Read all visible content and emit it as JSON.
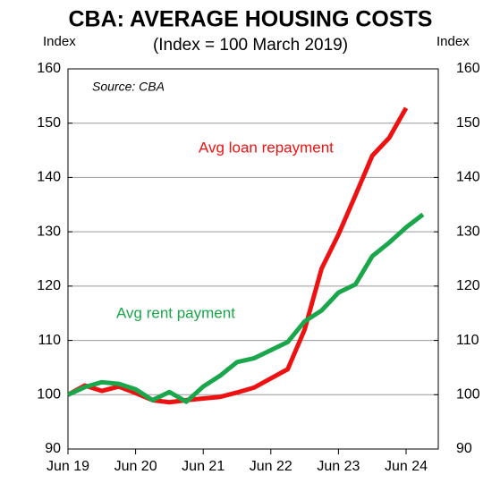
{
  "chart_data": {
    "type": "line",
    "title": "CBA: AVERAGE HOUSING COSTS",
    "subtitle": "(Index = 100 March 2019)",
    "y_axis_label": "Index",
    "y2_axis_label": "Index",
    "annotations": [
      "Source: CBA",
      "Avg loan repayment",
      "Avg rent payment"
    ],
    "categories": [
      "Jun 19",
      null,
      null,
      null,
      "Jun 20",
      null,
      null,
      null,
      "Jun 21",
      null,
      null,
      null,
      "Jun 22",
      null,
      null,
      null,
      "Jun 23",
      null,
      null,
      null,
      "Jun 24",
      null
    ],
    "series": [
      {
        "name": "Avg loan repayment",
        "color": "#ee1111",
        "values": [
          100,
          101.7,
          100.7,
          101.5,
          100.3,
          99,
          98.6,
          99,
          99.3,
          99.6,
          100.4,
          101.3,
          103,
          104.7,
          112,
          123.2,
          129.5,
          136.7,
          144,
          147.3,
          152.8,
          null
        ]
      },
      {
        "name": "Avg rent payment",
        "color": "#1aa64a",
        "values": [
          100,
          101.4,
          102.3,
          102,
          101,
          99,
          100.5,
          98.7,
          101.5,
          103.5,
          106,
          106.7,
          108.2,
          109.7,
          113.5,
          115.5,
          118.8,
          120.3,
          125.5,
          128,
          130.8,
          133.2
        ]
      }
    ],
    "ylim": [
      90,
      160
    ],
    "yticks": [
      90,
      100,
      110,
      120,
      130,
      140,
      150,
      160
    ],
    "y2lim": [
      90,
      160
    ],
    "y2ticks": [
      90,
      100,
      110,
      120,
      130,
      140,
      150,
      160
    ],
    "grid": true
  }
}
